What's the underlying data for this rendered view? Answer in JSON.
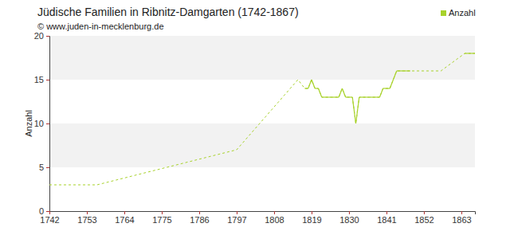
{
  "chart_data": {
    "type": "line",
    "title": "Jüdische Familien in Ribnitz-Damgarten (1742-1867)",
    "subtitle": "© www.juden-in-mecklenburg.de",
    "y_label": "Anzahl",
    "x": [
      1742,
      1756,
      1797,
      1815,
      1817,
      1818,
      1819,
      1820,
      1821,
      1822,
      1823,
      1824,
      1825,
      1826,
      1827,
      1828,
      1829,
      1830,
      1831,
      1832,
      1833,
      1834,
      1835,
      1836,
      1837,
      1838,
      1839,
      1840,
      1841,
      1842,
      1843,
      1844,
      1845,
      1846,
      1847,
      1848,
      1857,
      1864,
      1865,
      1866,
      1867
    ],
    "series": [
      {
        "name": "Anzahl",
        "color": "#a8d22b",
        "values": [
          3,
          3,
          7,
          15,
          14,
          14,
          15,
          14,
          14,
          13,
          13,
          13,
          13,
          13,
          13,
          14,
          13,
          13,
          13,
          10,
          13,
          13,
          13,
          13,
          13,
          13,
          13,
          14,
          14,
          14,
          15,
          16,
          16,
          16,
          16,
          16,
          16,
          18,
          18,
          18,
          18
        ]
      }
    ],
    "xlim": [
      1742,
      1867
    ],
    "xticks": [
      1742,
      1753,
      1764,
      1775,
      1786,
      1797,
      1808,
      1819,
      1830,
      1841,
      1852,
      1863
    ],
    "ylim": [
      0,
      20
    ],
    "yticks": [
      0,
      5,
      10,
      15,
      20
    ],
    "grid": true,
    "legend": "top-right"
  }
}
